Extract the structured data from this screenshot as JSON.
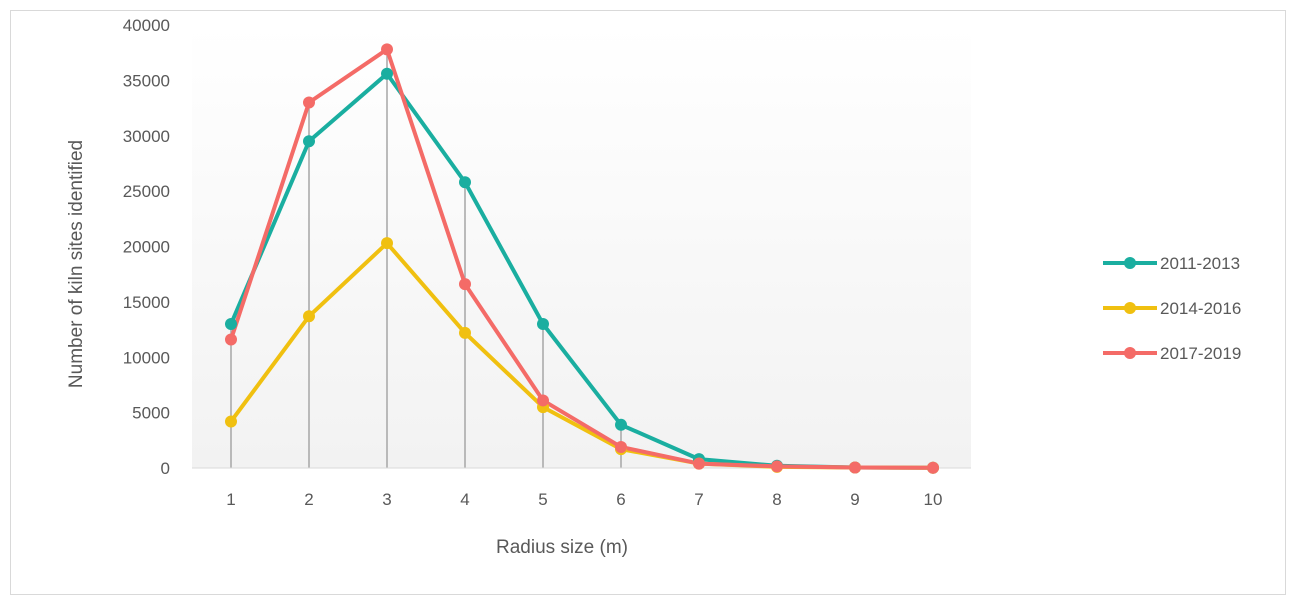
{
  "chart_data": {
    "type": "line",
    "title": "",
    "xlabel": "Radius size (m)",
    "ylabel": "Number of kiln sites identified",
    "categories": [
      "1",
      "2",
      "3",
      "4",
      "5",
      "6",
      "7",
      "8",
      "9",
      "10"
    ],
    "ylim": [
      0,
      40000
    ],
    "yticks": [
      "0",
      "5000",
      "10000",
      "15000",
      "20000",
      "25000",
      "30000",
      "35000",
      "40000"
    ],
    "grid": false,
    "drop_lines": true,
    "legend_position": "right",
    "series": [
      {
        "name": "2011-2013",
        "color": "#1aaea0",
        "values": [
          13000,
          29500,
          35600,
          25800,
          13000,
          3900,
          800,
          200,
          50,
          20
        ]
      },
      {
        "name": "2014-2016",
        "color": "#f0c010",
        "values": [
          4200,
          13700,
          20300,
          12200,
          5500,
          1700,
          400,
          100,
          50,
          20
        ]
      },
      {
        "name": "2017-2019",
        "color": "#f46b67",
        "values": [
          11600,
          33000,
          37800,
          16600,
          6100,
          1900,
          400,
          150,
          50,
          20
        ]
      }
    ]
  }
}
